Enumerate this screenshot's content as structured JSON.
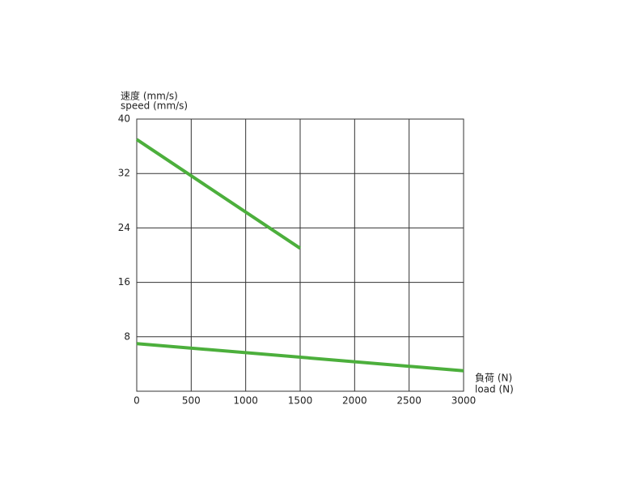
{
  "chart_data": {
    "type": "line",
    "ylabel": [
      "速度 (mm/s)",
      "speed (mm/s)"
    ],
    "xlabel": [
      "負荷 (N)",
      "load (N)"
    ],
    "xlim": [
      0,
      3000
    ],
    "xticks": [
      0,
      500,
      1000,
      1500,
      2000,
      2500,
      3000
    ],
    "ylim": [
      0,
      40
    ],
    "yticks": [
      8,
      16,
      24,
      32,
      40
    ],
    "grid": true,
    "series": [
      {
        "color": "#4caf3c",
        "x": [
          0,
          1500
        ],
        "values": [
          37,
          21
        ]
      },
      {
        "color": "#4caf3c",
        "x": [
          0,
          3000
        ],
        "values": [
          7,
          3
        ]
      }
    ]
  }
}
